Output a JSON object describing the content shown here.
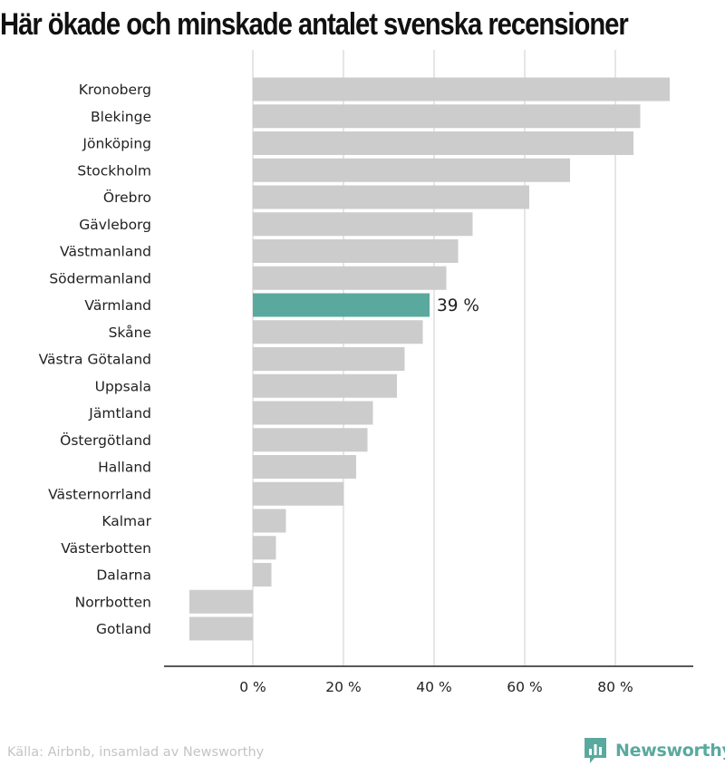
{
  "title": "Här ökade och minskade antalet svenska recensioner",
  "source": "Källa: Airbnb, insamlad av Newsworthy",
  "brand": "Newsworthy",
  "colors": {
    "bar": "#cccccc",
    "highlight": "#5aa99e",
    "axis": "#222222",
    "grid": "#dddddd",
    "text": "#222222"
  },
  "chart_data": {
    "type": "bar",
    "orientation": "horizontal",
    "categories": [
      "Kronoberg",
      "Blekinge",
      "Jönköping",
      "Stockholm",
      "Örebro",
      "Gävleborg",
      "Västmanland",
      "Södermanland",
      "Värmland",
      "Skåne",
      "Västra Götaland",
      "Uppsala",
      "Jämtland",
      "Östergötland",
      "Halland",
      "Västernorrland",
      "Kalmar",
      "Västerbotten",
      "Dalarna",
      "Norrbotten",
      "Gotland"
    ],
    "values": [
      92,
      85.5,
      84,
      70,
      61,
      48.5,
      45.3,
      42.7,
      39,
      37.5,
      33.5,
      31.8,
      26.5,
      25.3,
      22.8,
      20,
      7.3,
      5.1,
      4.1,
      -14,
      -14
    ],
    "highlight": "Värmland",
    "highlight_label": "39 %",
    "xlim": [
      -20,
      97
    ],
    "xticks": [
      0,
      20,
      40,
      60,
      80
    ],
    "xtick_labels": [
      "0 %",
      "20 %",
      "40 %",
      "60 %",
      "80 %"
    ],
    "grid": true
  }
}
